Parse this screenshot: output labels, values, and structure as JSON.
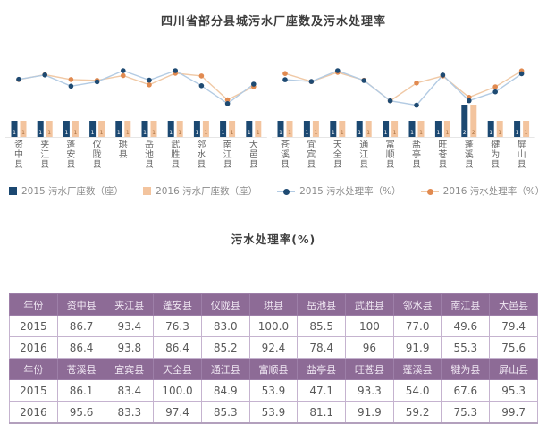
{
  "title": "四川省部分县城污水厂座数及污水处理率",
  "subtitle": "污水处理率(%)",
  "legend": [
    {
      "label": "2015 污水厂座数（座）",
      "type": "square",
      "color": "#1b4871"
    },
    {
      "label": "2016 污水厂座数（座）",
      "type": "square",
      "color": "#f3c49e"
    },
    {
      "label": "2015 污水处理率（%）",
      "type": "line",
      "color": "#b3cbe3",
      "marker": "#1e4a72"
    },
    {
      "label": "2016 污水处理率（%）",
      "type": "line",
      "color": "#f0c9a6",
      "marker": "#e18a50"
    }
  ],
  "colors": {
    "bar_2015": "#1b4871",
    "bar_2016": "#f3c49e",
    "bar_label_2015": "#ffffff",
    "bar_label_2016": "#b5order",
    "line_2015": "#b3cbe3",
    "marker_2015": "#1e4a72",
    "line_2016": "#f0c9a6",
    "marker_2016": "#e18a50",
    "axis_line": "#e6e6e6",
    "category_label": "#666666",
    "table_header_bg": "#8d6b96"
  },
  "chart_data": [
    {
      "type": "bar+line",
      "panel": "left",
      "categories": [
        "资中县",
        "夹江县",
        "蓬安县",
        "仪陇县",
        "珙县",
        "岳池县",
        "武胜县",
        "邻水县",
        "南江县",
        "大邑县"
      ],
      "series": [
        {
          "name": "2015 污水厂座数(座)",
          "type": "bar",
          "values": [
            1,
            1,
            1,
            1,
            1,
            1,
            1,
            1,
            1,
            1
          ]
        },
        {
          "name": "2016 污水厂座数(座)",
          "type": "bar",
          "values": [
            1,
            1,
            1,
            1,
            1,
            1,
            1,
            1,
            1,
            1
          ]
        },
        {
          "name": "2015 污水处理率(%)",
          "type": "line",
          "values": [
            86.7,
            93.4,
            76.3,
            83.0,
            100.0,
            85.5,
            100,
            77.0,
            49.6,
            79.4
          ]
        },
        {
          "name": "2016 污水处理率(%)",
          "type": "line",
          "values": [
            86.4,
            93.8,
            86.4,
            85.2,
            92.4,
            78.4,
            96,
            91.9,
            55.3,
            75.6
          ]
        }
      ],
      "ylim_line": [
        40,
        105
      ],
      "grid": false,
      "legend_position": "bottom"
    },
    {
      "type": "bar+line",
      "panel": "right",
      "categories": [
        "苍溪县",
        "宜宾县",
        "天全县",
        "通江县",
        "富顺县",
        "盐亭县",
        "旺苍县",
        "蓬溪县",
        "犍为县",
        "屏山县"
      ],
      "series": [
        {
          "name": "2015 污水厂座数(座)",
          "type": "bar",
          "values": [
            1,
            1,
            1,
            1,
            1,
            1,
            1,
            2,
            1,
            1
          ]
        },
        {
          "name": "2016 污水厂座数(座)",
          "type": "bar",
          "values": [
            1,
            1,
            1,
            1,
            1,
            1,
            1,
            2,
            1,
            1
          ]
        },
        {
          "name": "2015 污水处理率(%)",
          "type": "line",
          "values": [
            86.1,
            83.4,
            100.0,
            84.9,
            53.9,
            47.1,
            93.3,
            54.0,
            67.6,
            95.3
          ]
        },
        {
          "name": "2016 污水处理率(%)",
          "type": "line",
          "values": [
            95.6,
            83.3,
            97.4,
            85.3,
            53.9,
            81.1,
            91.9,
            59.2,
            75.3,
            99.7
          ]
        }
      ],
      "ylim_line": [
        40,
        105
      ],
      "grid": false,
      "legend_position": "bottom"
    }
  ],
  "table": {
    "groups": [
      {
        "header": [
          "年份",
          "资中县",
          "夹江县",
          "蓬安县",
          "仪陇县",
          "珙县",
          "岳池县",
          "武胜县",
          "邻水县",
          "南江县",
          "大邑县"
        ],
        "rows": [
          [
            "2015",
            "86.7",
            "93.4",
            "76.3",
            "83.0",
            "100.0",
            "85.5",
            "100",
            "77.0",
            "49.6",
            "79.4"
          ],
          [
            "2016",
            "86.4",
            "93.8",
            "86.4",
            "85.2",
            "92.4",
            "78.4",
            "96",
            "91.9",
            "55.3",
            "75.6"
          ]
        ]
      },
      {
        "header": [
          "年份",
          "苍溪县",
          "宜宾县",
          "天全县",
          "通江县",
          "富顺县",
          "盐亭县",
          "旺苍县",
          "蓬溪县",
          "犍为县",
          "屏山县"
        ],
        "rows": [
          [
            "2015",
            "86.1",
            "83.4",
            "100.0",
            "84.9",
            "53.9",
            "47.1",
            "93.3",
            "54.0",
            "67.6",
            "95.3"
          ],
          [
            "2016",
            "95.6",
            "83.3",
            "97.4",
            "85.3",
            "53.9",
            "81.1",
            "91.9",
            "59.2",
            "75.3",
            "99.7"
          ]
        ]
      }
    ]
  }
}
